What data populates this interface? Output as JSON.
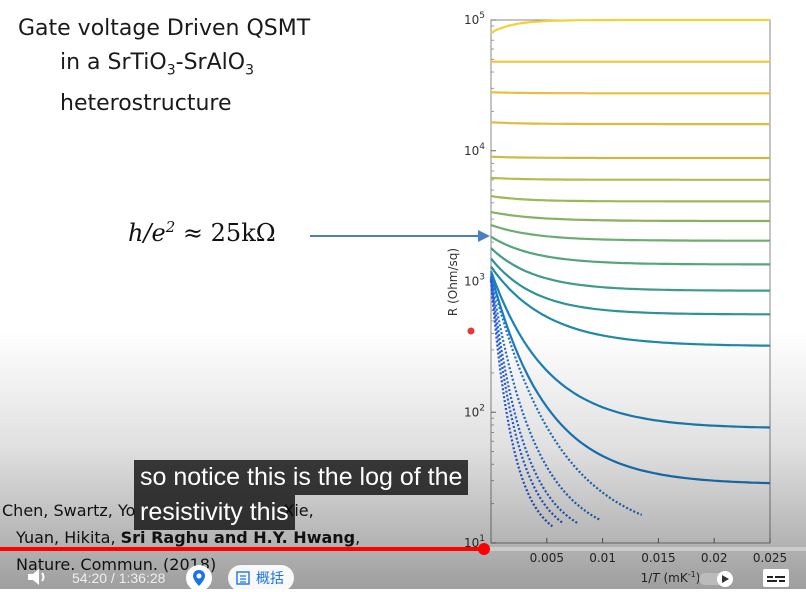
{
  "slide": {
    "title_line1": "Gate voltage Driven QSMT",
    "title_line2_prefix": "in a SrTiO",
    "title_line2_sub1": "3",
    "title_line2_mid": "-SrAlO",
    "title_line2_sub2": "3",
    "title_line3": "heterostructure",
    "formula_lhs": "h/e",
    "formula_exp": "2",
    "formula_rhs": " ≈ 25kΩ",
    "citation_line1": "Chen, Swartz, Yo",
    "citation_line1_end": "Xie,",
    "citation_line2_plain": "Yuan, Hikita, ",
    "citation_line2_bold": "Sri Raghu and H.Y. Hwang",
    "citation_line2_end": ",",
    "citation_line3": "Nature. Commun. (2018)"
  },
  "chart_data": {
    "type": "scatter",
    "xlabel_prefix": "1/",
    "xlabel_var": "T",
    "xlabel_unit": " (mK",
    "xlabel_exp": "-1",
    "xlabel_close": ")",
    "ylabel": "R (Ohm/sq)",
    "yscale": "log",
    "xlim": [
      0,
      0.025
    ],
    "ylim": [
      10,
      100000
    ],
    "x_ticks": [
      "0.005",
      "0.01",
      "0.015",
      "0.02",
      "0.025"
    ],
    "y_ticks": [
      {
        "base": "10",
        "exp": "5"
      },
      {
        "base": "10",
        "exp": "4"
      },
      {
        "base": "10",
        "exp": "3"
      },
      {
        "base": "10",
        "exp": "2"
      },
      {
        "base": "10",
        "exp": "1"
      }
    ],
    "series": [
      {
        "color": "#f2d13b",
        "start": 80000,
        "end": 100000,
        "tau": 0.002,
        "cutoff": 0.025
      },
      {
        "color": "#eec53c",
        "start": 48000,
        "end": 48000,
        "tau": 0.003,
        "cutoff": 0.025
      },
      {
        "color": "#e6c03e",
        "start": 28000,
        "end": 27500,
        "tau": 0.003,
        "cutoff": 0.025
      },
      {
        "color": "#dcbd41",
        "start": 16500,
        "end": 16000,
        "tau": 0.003,
        "cutoff": 0.025
      },
      {
        "color": "#cbbb46",
        "start": 9000,
        "end": 8800,
        "tau": 0.003,
        "cutoff": 0.025
      },
      {
        "color": "#b8ba4e",
        "start": 6200,
        "end": 6000,
        "tau": 0.003,
        "cutoff": 0.025
      },
      {
        "color": "#9fb757",
        "start": 4500,
        "end": 4100,
        "tau": 0.003,
        "cutoff": 0.025
      },
      {
        "color": "#86b262",
        "start": 3400,
        "end": 2900,
        "tau": 0.004,
        "cutoff": 0.025
      },
      {
        "color": "#6eac70",
        "start": 2700,
        "end": 2050,
        "tau": 0.004,
        "cutoff": 0.025
      },
      {
        "color": "#56a47e",
        "start": 2200,
        "end": 1350,
        "tau": 0.004,
        "cutoff": 0.025
      },
      {
        "color": "#409b8b",
        "start": 1800,
        "end": 850,
        "tau": 0.004,
        "cutoff": 0.025
      },
      {
        "color": "#2e9398",
        "start": 1500,
        "end": 560,
        "tau": 0.004,
        "cutoff": 0.025
      },
      {
        "color": "#1f8aa8",
        "start": 1300,
        "end": 320,
        "tau": 0.005,
        "cutoff": 0.025
      },
      {
        "color": "#1a82b8",
        "start": 1200,
        "end": 75,
        "tau": 0.005,
        "cutoff": 0.025
      },
      {
        "color": "#1c7bc4",
        "start": 1150,
        "end": 28,
        "tau": 0.005,
        "cutoff": 0.025
      },
      {
        "color": "#1f74cc",
        "start": 1100,
        "end": 10,
        "tau": 0.006,
        "cutoff": 0.0135
      },
      {
        "color": "#226ed2",
        "start": 1080,
        "end": 10,
        "tau": 0.004,
        "cutoff": 0.0098
      },
      {
        "color": "#2566d6",
        "start": 1050,
        "end": 10,
        "tau": 0.003,
        "cutoff": 0.0078
      },
      {
        "color": "#285fd8",
        "start": 1030,
        "end": 10,
        "tau": 0.0025,
        "cutoff": 0.0065
      },
      {
        "color": "#2b58d9",
        "start": 1010,
        "end": 10,
        "tau": 0.002,
        "cutoff": 0.0055
      }
    ]
  },
  "subtitle": {
    "line1": "so notice this is the log of the",
    "line2": "resistivity this"
  },
  "player": {
    "time_current": "54:20",
    "time_separator": " / ",
    "time_total": "1:36:28",
    "progress": 0.6,
    "chapters_label": "概括",
    "accent_color": "#ff0000",
    "volume_icon": "volume-icon",
    "pin_icon": "location-pin-icon",
    "chapters_icon": "list-icon",
    "autoplay_icon": "autoplay-toggle-icon",
    "captions_icon": "captions-icon"
  }
}
